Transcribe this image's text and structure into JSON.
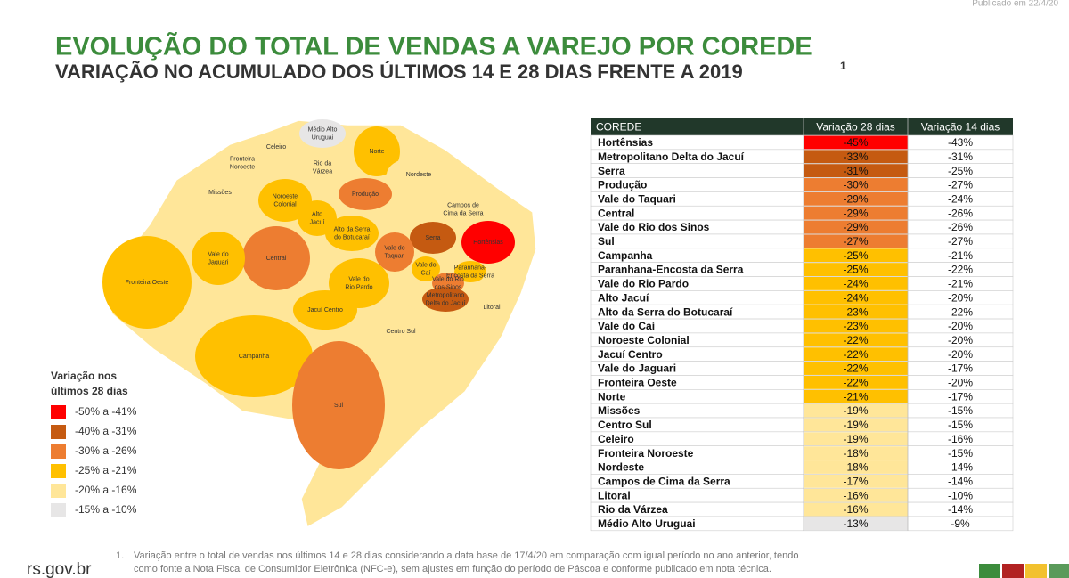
{
  "header": {
    "published": "Publicado em 22/4/20",
    "title": "EVOLUÇÃO DO TOTAL DE VENDAS A VAREJO POR COREDE",
    "subtitle": "VARIAÇÃO NO ACUMULADO DOS ÚLTIMOS 14 E 28 DIAS FRENTE A 2019",
    "subtitle_note": "1"
  },
  "legend": {
    "title": [
      "Variação nos",
      "últimos 28 dias"
    ],
    "items": [
      {
        "label": "-50% a -41%",
        "from": -50,
        "to": -41,
        "color": "#ff0000"
      },
      {
        "label": "-40% a -31%",
        "from": -40,
        "to": -31,
        "color": "#c55a11"
      },
      {
        "label": "-30% a -26%",
        "from": -30,
        "to": -26,
        "color": "#ed7d31"
      },
      {
        "label": "-25% a -21%",
        "from": -25,
        "to": -21,
        "color": "#ffc000"
      },
      {
        "label": "-20% a -16%",
        "from": -20,
        "to": -16,
        "color": "#ffe699"
      },
      {
        "label": "-15% a -10%",
        "from": -15,
        "to": -10,
        "color": "#e7e6e6"
      }
    ]
  },
  "map": {
    "labels": [
      [
        "Médio Alto",
        "Uruguai"
      ],
      [
        "Celeiro"
      ],
      [
        "Fronteira",
        "Noroeste"
      ],
      [
        "Rio da",
        "Várzea"
      ],
      [
        "Norte"
      ],
      [
        "Nordeste"
      ],
      [
        "Missões"
      ],
      [
        "Noroeste",
        "Colonial"
      ],
      [
        "Produção"
      ],
      [
        "Campos de",
        "Cima da Serra"
      ],
      [
        "Alto",
        "Jacuí"
      ],
      [
        "Alto da Serra",
        "do Botucaraí"
      ],
      [
        "Serra"
      ],
      [
        "Hortênsias"
      ],
      [
        "Vale do",
        "Taquari"
      ],
      [
        "Vale do",
        "Caí"
      ],
      [
        "Paranhana-",
        "Encosta da Serra"
      ],
      [
        "Vale do Rio",
        "dos Sinos"
      ],
      [
        "Metropolitano",
        "Delta do Jacuí"
      ],
      [
        "Litoral"
      ],
      [
        "Central"
      ],
      [
        "Vale do",
        "Jaguari"
      ],
      [
        "Vale do",
        "Rio Pardo"
      ],
      [
        "Fronteira Oeste"
      ],
      [
        "Jacuí Centro"
      ],
      [
        "Centro Sul"
      ],
      [
        "Campanha"
      ],
      [
        "Sul"
      ]
    ]
  },
  "table": {
    "columns": [
      "COREDE",
      "Variação 28 dias",
      "Variação 14 dias"
    ],
    "categories": [
      "Hortênsias",
      "Metropolitano Delta do Jacuí",
      "Serra",
      "Produção",
      "Vale do Taquari",
      "Central",
      "Vale do Rio dos Sinos",
      "Sul",
      "Campanha",
      "Paranhana-Encosta da Serra",
      "Vale do Rio Pardo",
      "Alto Jacuí",
      "Alto da Serra do Botucaraí",
      "Vale do Caí",
      "Noroeste Colonial",
      "Jacuí Centro",
      "Vale do Jaguari",
      "Fronteira Oeste",
      "Norte",
      "Missões",
      "Centro Sul",
      "Celeiro",
      "Fronteira Noroeste",
      "Nordeste",
      "Campos de Cima da Serra",
      "Litoral",
      "Rio da Várzea",
      "Médio Alto Uruguai"
    ],
    "series": [
      {
        "name": "Variação 28 dias",
        "values": [
          -45,
          -33,
          -31,
          -30,
          -29,
          -29,
          -29,
          -27,
          -25,
          -25,
          -24,
          -24,
          -23,
          -23,
          -22,
          -22,
          -22,
          -22,
          -21,
          -19,
          -19,
          -19,
          -18,
          -18,
          -17,
          -16,
          -16,
          -13
        ],
        "value_labels": [
          "-45%",
          "-33%",
          "-31%",
          "-30%",
          "-29%",
          "-29%",
          "-29%",
          "-27%",
          "-25%",
          "-25%",
          "-24%",
          "-24%",
          "-23%",
          "-23%",
          "-22%",
          "-22%",
          "-22%",
          "-22%",
          "-21%",
          "-19%",
          "-19%",
          "-19%",
          "-18%",
          "-18%",
          "-17%",
          "-16%",
          "-16%",
          "-13%"
        ]
      },
      {
        "name": "Variação 14 dias",
        "values": [
          -43,
          -31,
          -25,
          -27,
          -24,
          -26,
          -26,
          -27,
          -21,
          -22,
          -21,
          -20,
          -22,
          -20,
          -20,
          -20,
          -17,
          -20,
          -17,
          -15,
          -15,
          -16,
          -15,
          -14,
          -14,
          -10,
          -14,
          -9
        ],
        "value_labels": [
          "-43%",
          "-31%",
          "-25%",
          "-27%",
          "-24%",
          "-26%",
          "-26%",
          "-27%",
          "-21%",
          "-22%",
          "-21%",
          "-20%",
          "-22%",
          "-20%",
          "-20%",
          "-20%",
          "-17%",
          "-20%",
          "-17%",
          "-15%",
          "-15%",
          "-16%",
          "-15%",
          "-14%",
          "-14%",
          "-10%",
          "-14%",
          "-9%"
        ]
      }
    ]
  },
  "footer": {
    "note_number": "1.",
    "note": [
      "Variação entre o total de vendas nos últimos 14 e 28 dias considerando a data base de 17/4/20 em comparação com igual período no ano anterior, tendo",
      "como fonte a Nota Fiscal de Consumidor Eletrônica (NFC-e), sem ajustes em função do período de Páscoa e conforme publicado em nota técnica."
    ],
    "site": "rs.gov.br"
  }
}
